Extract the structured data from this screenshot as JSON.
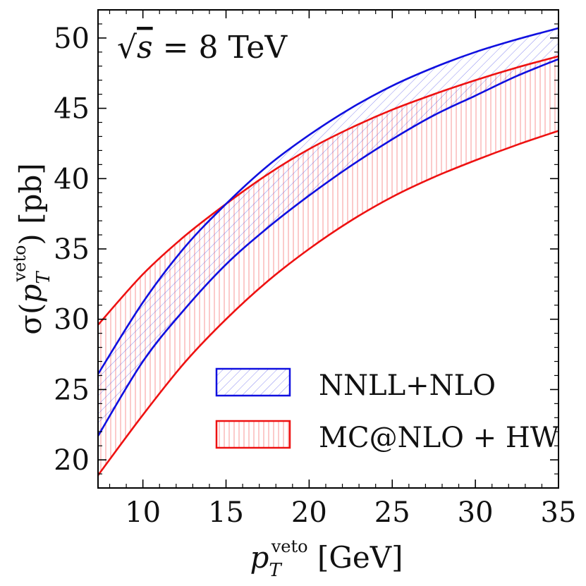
{
  "chart_data": {
    "type": "area",
    "title": "",
    "annotation": {
      "sqrt_symbol": "√",
      "var": "s",
      "rest": " = 8 TeV"
    },
    "xlabel": {
      "main": "p",
      "sub": "T",
      "sup": "veto",
      "unit": " [GeV]"
    },
    "ylabel": {
      "prefix": "σ(",
      "main": "p",
      "sub": "T",
      "sup": "veto",
      "suffix": ") [pb]"
    },
    "xlim": [
      7.3,
      35
    ],
    "ylim": [
      18,
      52
    ],
    "x_ticks": [
      10,
      15,
      20,
      25,
      30,
      35
    ],
    "y_ticks": [
      20,
      25,
      30,
      35,
      40,
      45,
      50
    ],
    "x_tick_labels": [
      "10",
      "15",
      "20",
      "25",
      "30",
      "35"
    ],
    "y_tick_labels": [
      "20",
      "25",
      "30",
      "35",
      "40",
      "45",
      "50"
    ],
    "grid": false,
    "legend_position": "bottom-right",
    "x": [
      7.3,
      10,
      12.5,
      15,
      17.5,
      20,
      22.5,
      25,
      27.5,
      30,
      32.5,
      35
    ],
    "series": [
      {
        "name": "NNLL+NLO",
        "color": "#1010e0",
        "hatch": "diagonal",
        "upper": [
          26.1,
          31.2,
          35.1,
          38.2,
          40.9,
          43.1,
          45.0,
          46.6,
          47.9,
          49.0,
          49.9,
          50.7
        ],
        "lower": [
          21.7,
          27.0,
          30.7,
          33.9,
          36.5,
          38.8,
          40.9,
          42.8,
          44.5,
          45.9,
          47.3,
          48.5
        ]
      },
      {
        "name": "MC@NLO + HW",
        "color": "#ee1111",
        "hatch": "vertical",
        "upper": [
          29.6,
          33.2,
          35.9,
          38.2,
          40.3,
          42.1,
          43.6,
          44.9,
          46.0,
          47.0,
          47.9,
          48.7
        ],
        "lower": [
          18.9,
          23.2,
          26.9,
          30.0,
          32.7,
          35.0,
          37.0,
          38.7,
          40.1,
          41.3,
          42.4,
          43.4
        ]
      }
    ],
    "legend": {
      "entry1": "NNLL+NLO",
      "entry2": "MC@NLO + HW"
    }
  }
}
